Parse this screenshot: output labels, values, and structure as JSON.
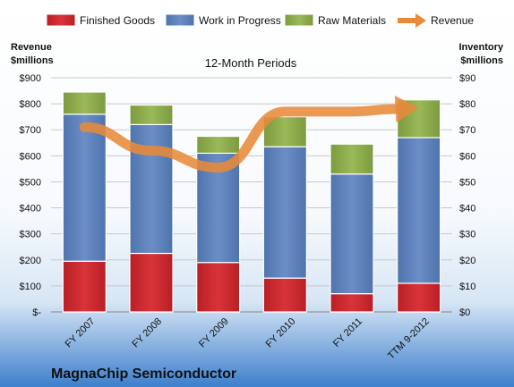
{
  "chart_data": {
    "type": "bar",
    "stacked": true,
    "company": "MagnaChip Semiconductor",
    "subtitle": "12-Month Periods",
    "ylabel_left": [
      "Revenue",
      "$millions"
    ],
    "ylabel_right": [
      "Inventory",
      "$millions"
    ],
    "categories": [
      "FY 2007",
      "FY 2008",
      "FY 2009",
      "FY 2010",
      "FY 2011",
      "TTM 9-2012"
    ],
    "left_ticks": [
      "$-",
      "$100",
      "$200",
      "$300",
      "$400",
      "$500",
      "$600",
      "$700",
      "$800",
      "$900"
    ],
    "right_ticks": [
      "$0",
      "$10",
      "$20",
      "$30",
      "$40",
      "$50",
      "$60",
      "$70",
      "$80",
      "$90"
    ],
    "ylim_left": [
      0,
      900
    ],
    "ylim_right": [
      0,
      90
    ],
    "grid": true,
    "legend_position": "top",
    "series": [
      {
        "name": "Finished Goods",
        "color": "#c0272d",
        "values": [
          19.5,
          22.5,
          19,
          13,
          7,
          11
        ]
      },
      {
        "name": "Work in Progress",
        "color": "#5a7fb8",
        "values": [
          56.5,
          49.5,
          42,
          50.5,
          46,
          56
        ]
      },
      {
        "name": "Raw Materials",
        "color": "#8aa94a",
        "values": [
          8.5,
          7.5,
          6.5,
          11.5,
          11.5,
          14.5
        ]
      }
    ],
    "line_series": {
      "name": "Revenue",
      "color": "#e88a3a",
      "values": [
        710,
        620,
        555,
        770,
        770,
        785
      ]
    }
  }
}
